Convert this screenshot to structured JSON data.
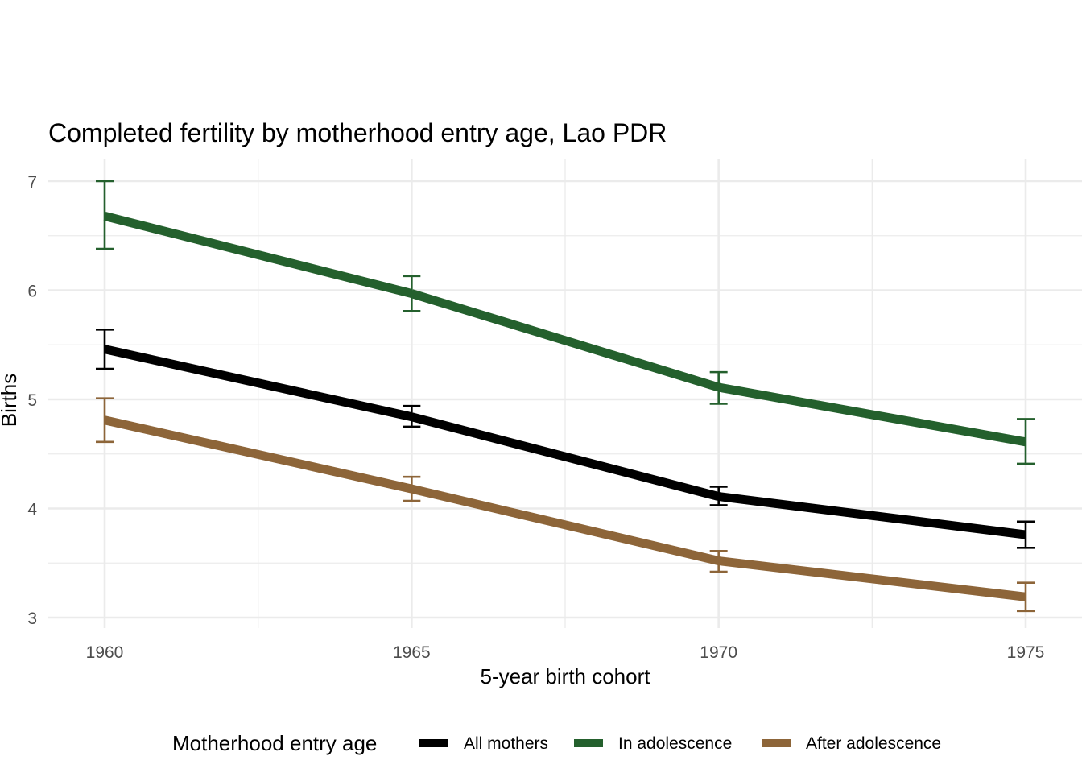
{
  "chart_data": {
    "type": "line",
    "title": "Completed fertility by motherhood entry age,  Lao PDR",
    "xlabel": "5-year birth cohort",
    "ylabel": "Births",
    "x": [
      1960,
      1965,
      1970,
      1975
    ],
    "x_ticks": [
      "1960",
      "1965",
      "1970",
      "1975"
    ],
    "y_ticks": [
      "3",
      "4",
      "5",
      "6",
      "7"
    ],
    "xlim": [
      1959.1,
      1975.9
    ],
    "ylim": [
      2.9,
      7.18
    ],
    "grid": true,
    "legend": {
      "title": "Motherhood entry age",
      "position": "bottom"
    },
    "series": [
      {
        "name": "All mothers",
        "color": "#000000",
        "values": [
          5.46,
          4.84,
          4.11,
          3.76
        ],
        "error_low": [
          5.28,
          4.75,
          4.03,
          3.64
        ],
        "error_high": [
          5.64,
          4.94,
          4.2,
          3.88
        ]
      },
      {
        "name": "In adolescence",
        "color": "#24602d",
        "values": [
          6.68,
          5.97,
          5.11,
          4.61
        ],
        "error_low": [
          6.38,
          5.81,
          4.96,
          4.41
        ],
        "error_high": [
          7.0,
          6.13,
          5.25,
          4.82
        ]
      },
      {
        "name": "After adolescence",
        "color": "#8d6539",
        "values": [
          4.81,
          4.18,
          3.52,
          3.19
        ],
        "error_low": [
          4.61,
          4.07,
          3.42,
          3.06
        ],
        "error_high": [
          5.01,
          4.29,
          3.61,
          3.32
        ]
      }
    ]
  }
}
